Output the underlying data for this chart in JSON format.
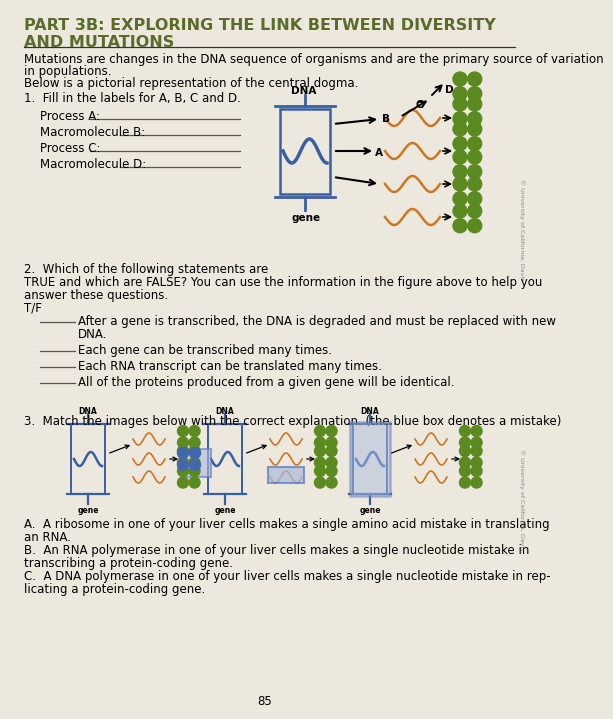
{
  "bg_color": "#ede8de",
  "title_line1": "PART 3B: EXPLORING THE LINK BETWEEN DIVERSITY",
  "title_line2": "AND MUTATIONS",
  "title_color": "#5a6b2a",
  "title_fontsize": 11.5,
  "body_fontsize": 8.5,
  "small_fontsize": 7.5,
  "intro_text1": "Mutations are changes in the DNA sequence of organisms and are the primary source of variation",
  "intro_text2": "in populations.",
  "intro_text3": "Below is a pictorial representation of the central dogma.",
  "q1_header": "1.  Fill in the labels for A, B, C and D.",
  "q1_labels": [
    "Process A:",
    "Macromolecule B:",
    "Process C:",
    "Macromolecule D:"
  ],
  "q2_header1": "2.  Which of the following statements are",
  "q2_header2": "TRUE and which are FALSE? You can use the information in the figure above to help you",
  "q2_header3": "answer these questions.",
  "q2_header4": "T/F",
  "q2_s1": "After a gene is transcribed, the DNA is degraded and must be replaced with new",
  "q2_s1b": "DNA.",
  "q2_s2": "Each gene can be transcribed many times.",
  "q2_s3": "Each RNA transcript can be translated many times.",
  "q2_s4": "All of the proteins produced from a given gene will be identical.",
  "q3_header": "3.  Match the images below with the correct explanation. (the blue box denotes a mistake)",
  "q3_a": "A.  A ribosome in one of your liver cells makes a single amino acid mistake in translating",
  "q3_a2": "an RNA.",
  "q3_b": "B.  An RNA polymerase in one of your liver cells makes a single nucleotide mistake in",
  "q3_b2": "transcribing a protein-coding gene.",
  "q3_c": "C.  A DNA polymerase in one of your liver cells makes a single nucleotide mistake in rep-",
  "q3_c2": "licating a protein-coding gene.",
  "page_number": "85",
  "watermark": "© University of California, Davis",
  "dna_color": "#3a5fa0",
  "rna_color": "#cc7722",
  "protein_color": "#5a8a20",
  "blue_box_color": "#5577bb",
  "blue_protein_color": "#4466aa",
  "line_color": "#333333"
}
